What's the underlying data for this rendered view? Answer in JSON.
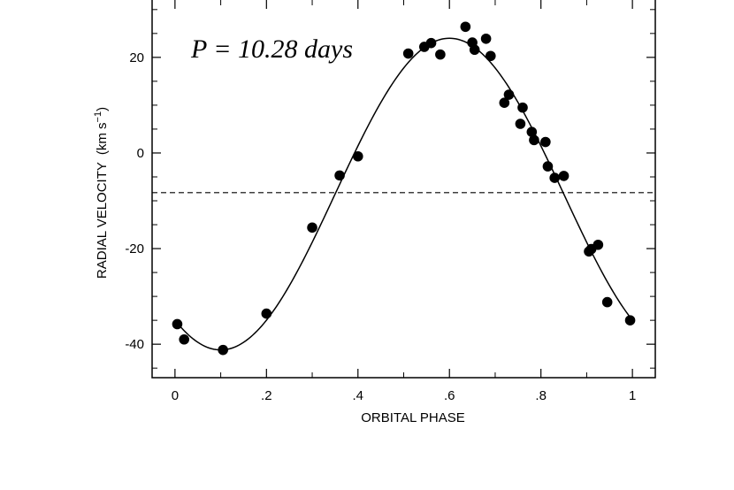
{
  "chart_data": {
    "type": "scatter",
    "annotation": "P = 10.28 days",
    "xlabel": "ORBITAL PHASE",
    "ylabel": "RADIAL VELOCITY",
    "ylabel_unit": "(km s",
    "ylabel_exp": "−1",
    "ylabel_close": ")",
    "xlim": [
      -0.05,
      1.05
    ],
    "ylim": [
      -47,
      32
    ],
    "x_ticks": [
      0,
      0.2,
      0.4,
      0.6,
      0.8,
      1
    ],
    "x_tick_labels": [
      "0",
      ".2",
      ".4",
      ".6",
      ".8",
      "1"
    ],
    "y_ticks": [
      -40,
      -20,
      0,
      20
    ],
    "y_tick_labels": [
      "-40",
      "-20",
      "0",
      "20"
    ],
    "systemic_velocity": -8.3,
    "fit": {
      "gamma": -8.6,
      "K": 32.6,
      "peak_phase": 0.6
    },
    "points": [
      {
        "x": 0.005,
        "y": -35.8
      },
      {
        "x": 0.02,
        "y": -39.0
      },
      {
        "x": 0.105,
        "y": -41.2
      },
      {
        "x": 0.2,
        "y": -33.6
      },
      {
        "x": 0.3,
        "y": -15.6
      },
      {
        "x": 0.36,
        "y": -4.7
      },
      {
        "x": 0.4,
        "y": -0.7
      },
      {
        "x": 0.51,
        "y": 20.8
      },
      {
        "x": 0.545,
        "y": 22.2
      },
      {
        "x": 0.56,
        "y": 23.0
      },
      {
        "x": 0.58,
        "y": 20.6
      },
      {
        "x": 0.635,
        "y": 26.4
      },
      {
        "x": 0.65,
        "y": 23.1
      },
      {
        "x": 0.655,
        "y": 21.6
      },
      {
        "x": 0.68,
        "y": 23.9
      },
      {
        "x": 0.69,
        "y": 20.3
      },
      {
        "x": 0.72,
        "y": 10.5
      },
      {
        "x": 0.73,
        "y": 12.2
      },
      {
        "x": 0.755,
        "y": 6.1
      },
      {
        "x": 0.76,
        "y": 9.5
      },
      {
        "x": 0.78,
        "y": 4.4
      },
      {
        "x": 0.785,
        "y": 2.7
      },
      {
        "x": 0.81,
        "y": 2.3
      },
      {
        "x": 0.815,
        "y": -2.8
      },
      {
        "x": 0.83,
        "y": -5.2
      },
      {
        "x": 0.85,
        "y": -4.8
      },
      {
        "x": 0.905,
        "y": -20.6
      },
      {
        "x": 0.91,
        "y": -20.1
      },
      {
        "x": 0.925,
        "y": -19.2
      },
      {
        "x": 0.945,
        "y": -31.2
      },
      {
        "x": 0.995,
        "y": -35.0
      }
    ],
    "grid": false,
    "legend": "none",
    "colors": {
      "marker": "#000000",
      "line": "#000000",
      "frame": "#000000"
    }
  }
}
